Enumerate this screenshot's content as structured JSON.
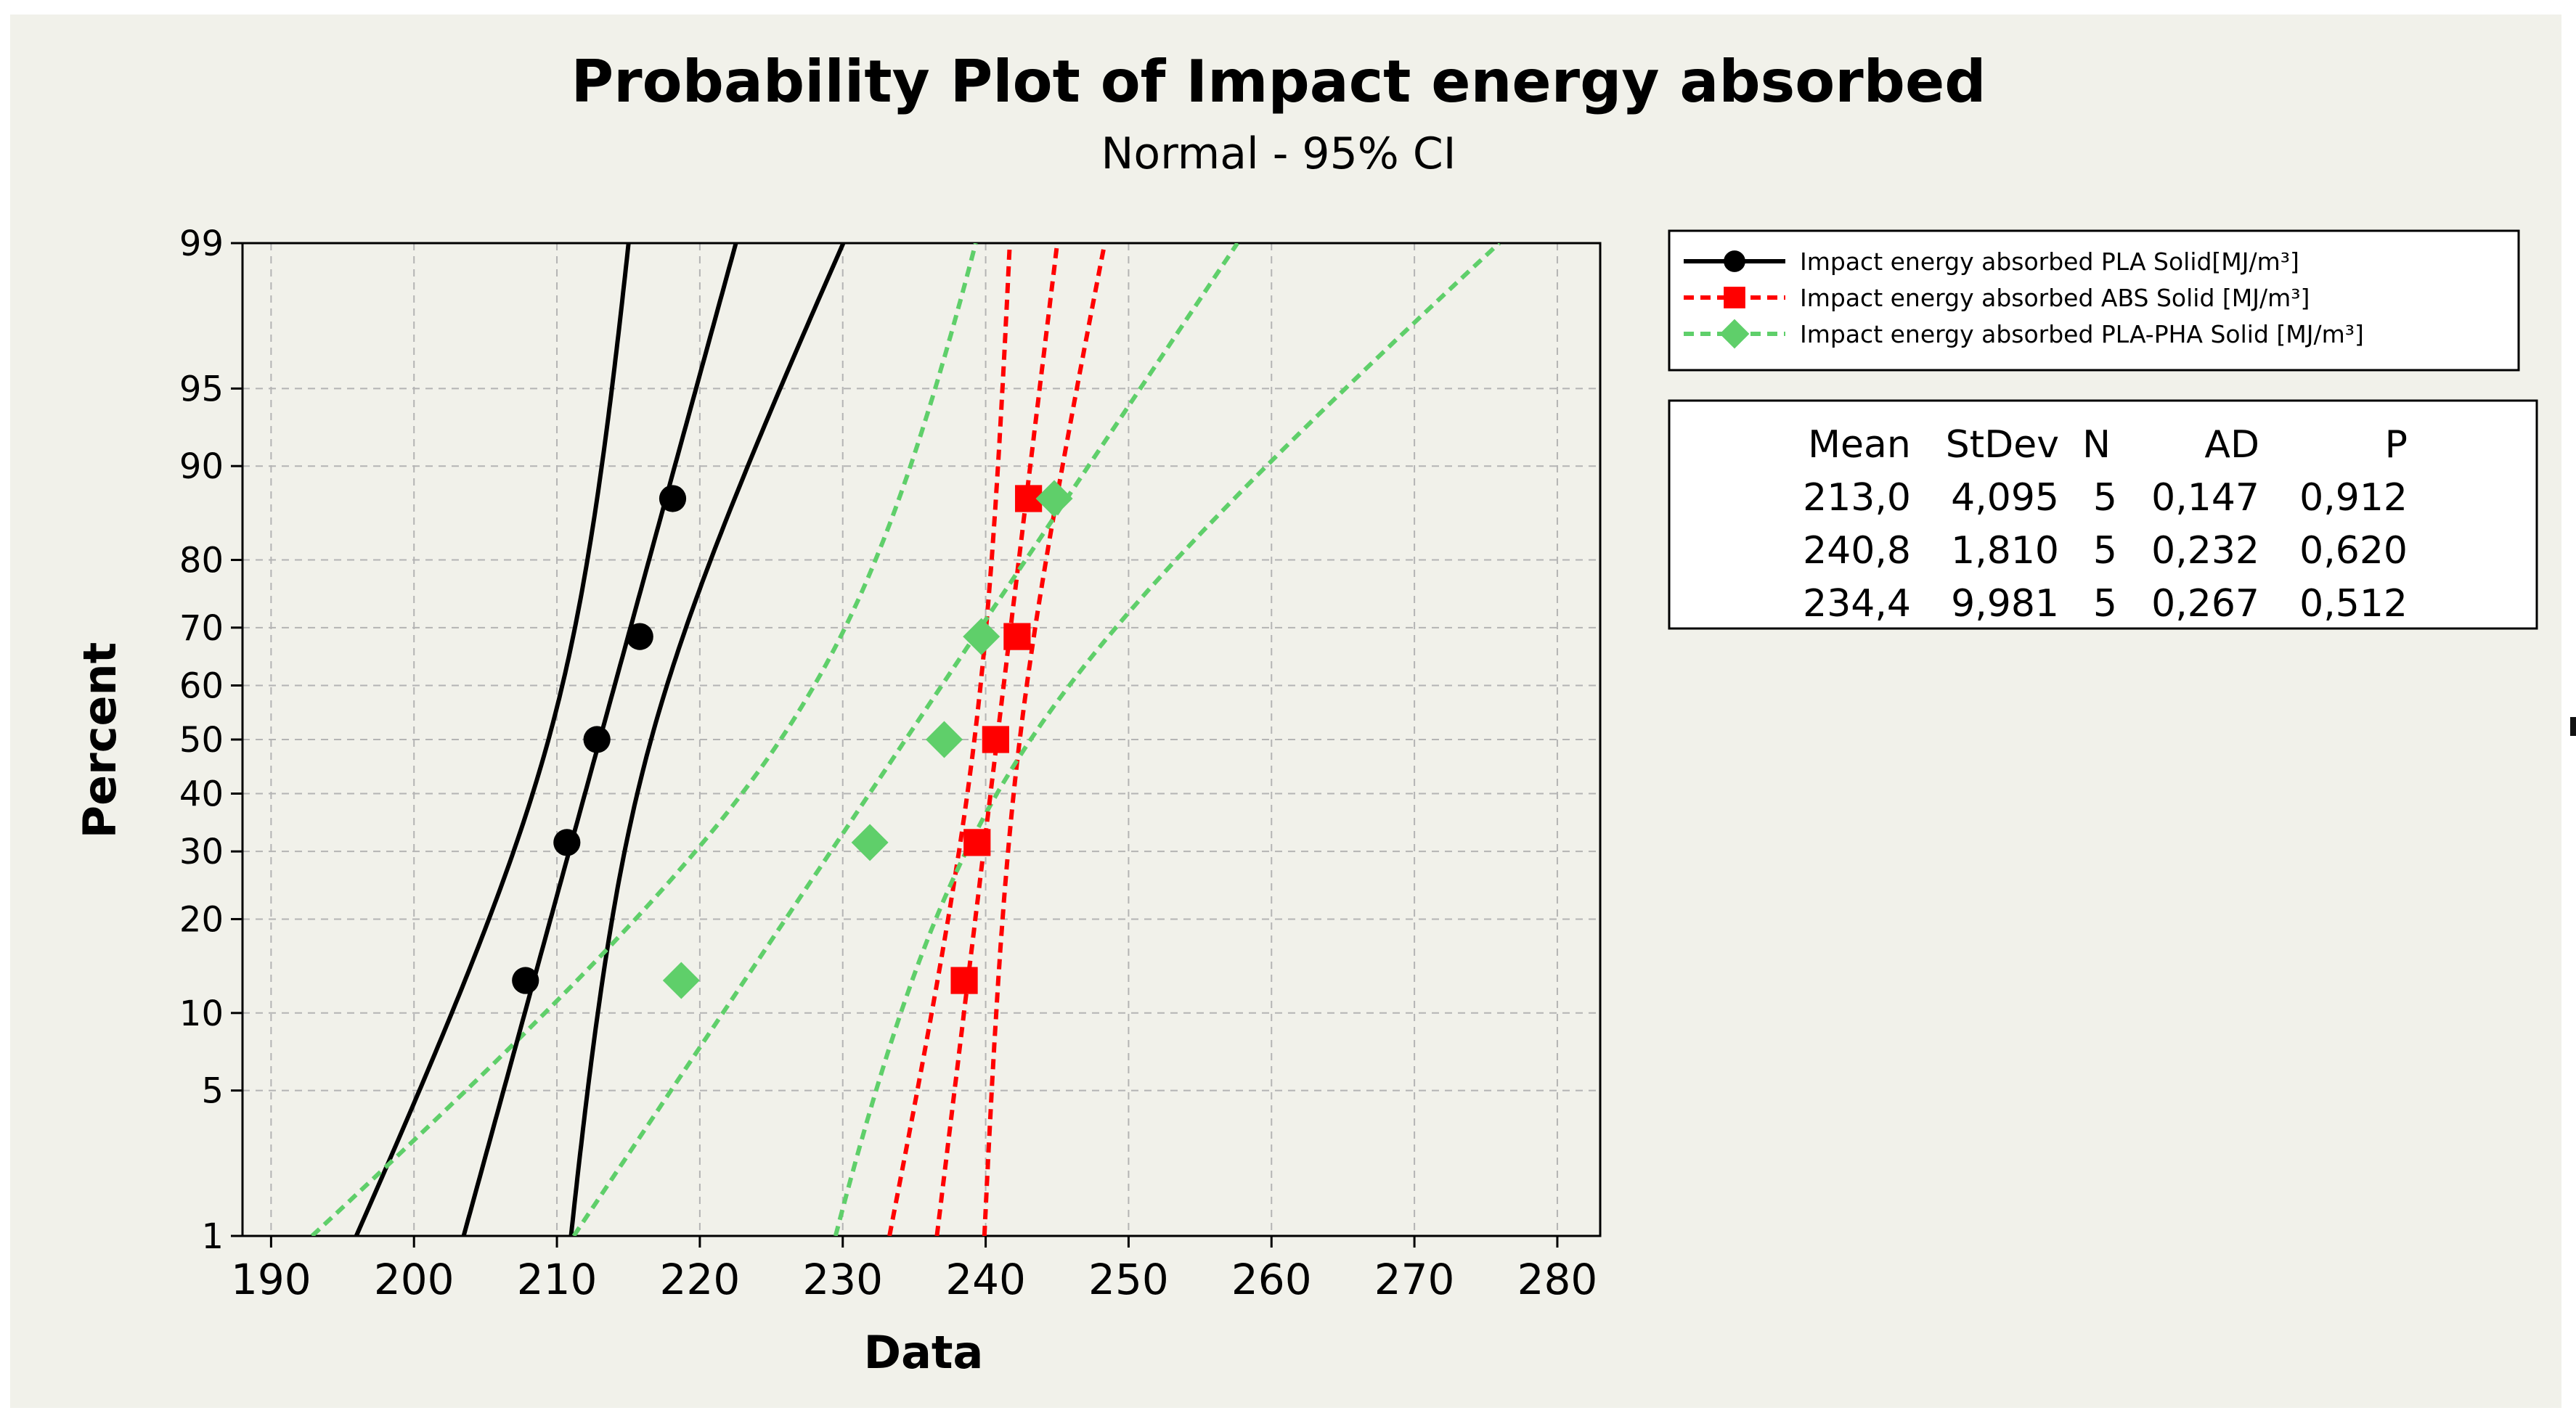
{
  "chart_data": {
    "type": "probability-plot",
    "title": "Probability Plot of Impact energy absorbed",
    "subtitle": "Normal - 95% CI",
    "xlabel": "Data",
    "ylabel": "Percent",
    "xlim": [
      188,
      283
    ],
    "xticks": [
      190,
      200,
      210,
      220,
      230,
      240,
      250,
      260,
      270,
      280
    ],
    "yticks": [
      1,
      5,
      10,
      20,
      30,
      40,
      50,
      60,
      70,
      80,
      90,
      95,
      99
    ],
    "ylim": [
      1,
      99
    ],
    "grid": true,
    "legend_position": "top-right",
    "colors": {
      "background": "#f1f1ea",
      "grid": "#b4b4b4"
    },
    "series": [
      {
        "name": "Impact energy absorbed PLA Solid[MJ/m³]",
        "color": "#000000",
        "marker": "circle",
        "line": "solid",
        "mean": 213.0,
        "stdev": 4.095,
        "n": 5,
        "points": [
          {
            "x": 207.8,
            "p": 12.94
          },
          {
            "x": 210.7,
            "p": 31.47
          },
          {
            "x": 212.8,
            "p": 50
          },
          {
            "x": 215.8,
            "p": 68.53
          },
          {
            "x": 218.1,
            "p": 87.06
          }
        ]
      },
      {
        "name": "Impact energy absorbed ABS Solid [MJ/m³]",
        "color": "#ff0000",
        "marker": "square",
        "line": "dashed",
        "mean": 240.8,
        "stdev": 1.81,
        "n": 5,
        "points": [
          {
            "x": 238.5,
            "p": 12.94
          },
          {
            "x": 239.4,
            "p": 31.47
          },
          {
            "x": 240.7,
            "p": 50
          },
          {
            "x": 242.2,
            "p": 68.53
          },
          {
            "x": 243.0,
            "p": 87.06
          }
        ]
      },
      {
        "name": "Impact energy absorbed PLA-PHA Solid [MJ/m³]",
        "color": "#5fcf6a",
        "marker": "diamond",
        "line": "dashed",
        "mean": 234.4,
        "stdev": 9.981,
        "n": 5,
        "points": [
          {
            "x": 218.7,
            "p": 12.94
          },
          {
            "x": 231.9,
            "p": 31.47
          },
          {
            "x": 237.1,
            "p": 50
          },
          {
            "x": 239.7,
            "p": 68.53
          },
          {
            "x": 244.8,
            "p": 87.06
          }
        ]
      }
    ],
    "stats_table": {
      "headers": [
        "Mean",
        "StDev",
        "N",
        "AD",
        "P"
      ],
      "rows": [
        [
          "213,0",
          "4,095",
          "5",
          "0,147",
          "0,912"
        ],
        [
          "240,8",
          "1,810",
          "5",
          "0,232",
          "0,620"
        ],
        [
          "234,4",
          "9,981",
          "5",
          "0,267",
          "0,512"
        ]
      ]
    }
  }
}
